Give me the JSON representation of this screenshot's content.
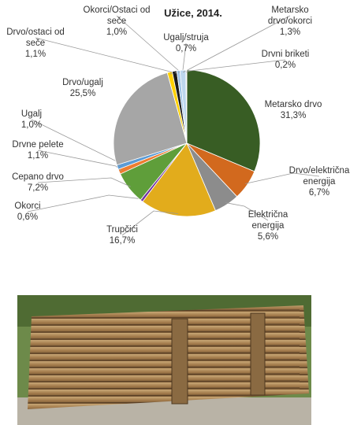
{
  "chart_data": {
    "type": "pie",
    "title": "Užice, 2014.",
    "categories": [
      "Metarsko drvo",
      "Drvo/električna energija",
      "Električna energija",
      "Trupčići",
      "Okorci",
      "Cepano drvo",
      "Drvne pelete",
      "Ugalj",
      "Drvo/ugalj",
      "Drvo/ostaci od seče",
      "Okorci/Ostaci od seče",
      "Ugalj/struja",
      "Metarsko drvo/okorci",
      "Drvni briketi"
    ],
    "values": [
      31.3,
      6.7,
      5.6,
      16.7,
      0.6,
      7.2,
      1.1,
      1.0,
      25.5,
      1.1,
      1.0,
      0.7,
      1.3,
      0.2
    ],
    "value_labels": [
      "31,3%",
      "6,7%",
      "5,6%",
      "16,7%",
      "0,6%",
      "7,2%",
      "1,1%",
      "1,0%",
      "25,5%",
      "1,1%",
      "1,0%",
      "0,7%",
      "1,3%",
      "0,2%"
    ],
    "colors": [
      "#385d24",
      "#d2691e",
      "#8c8c8c",
      "#e2ac1c",
      "#7030a0",
      "#5f9e3a",
      "#ed7d31",
      "#5b9bd5",
      "#a6a6a6",
      "#ffd000",
      "#1a1a1a",
      "#9dc3e6",
      "#bdd7ee",
      "#f2f2f2"
    ]
  }
}
